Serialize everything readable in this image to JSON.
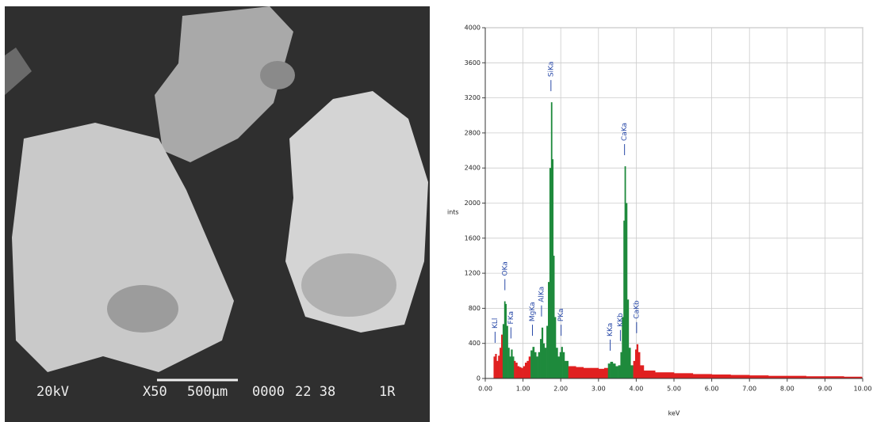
{
  "micrograph": {
    "voltage": "20kV",
    "magnification": "X50",
    "scale": "500µm",
    "code": "0000",
    "number": "22 38",
    "label": "1R"
  },
  "chart_data": {
    "type": "spectrum",
    "y_label": "ints",
    "x_label": "keV",
    "xlim": [
      0,
      10
    ],
    "ylim": [
      0,
      4000
    ],
    "xticks": [
      {
        "value": 0,
        "label": "0.00"
      },
      {
        "value": 1,
        "label": "1.00"
      },
      {
        "value": 2,
        "label": "2.00"
      },
      {
        "value": 3,
        "label": "3.00"
      },
      {
        "value": 4,
        "label": "4.00"
      },
      {
        "value": 5,
        "label": "5.00"
      },
      {
        "value": 6,
        "label": "6.00"
      },
      {
        "value": 7,
        "label": "7.00"
      },
      {
        "value": 8,
        "label": "8.00"
      },
      {
        "value": 9,
        "label": "9.00"
      },
      {
        "value": 10,
        "label": "10.00"
      }
    ],
    "yticks": [
      0,
      400,
      800,
      1200,
      1600,
      2000,
      2400,
      2800,
      3200,
      3600,
      4000
    ],
    "grid": true,
    "color": "#e02020",
    "highlight_color": "#1e8a3c",
    "highlight_ranges": [
      [
        0.44,
        0.75
      ],
      [
        1.18,
        2.15
      ],
      [
        3.2,
        3.86
      ]
    ],
    "x": [
      0.2,
      0.22,
      0.26,
      0.3,
      0.34,
      0.38,
      0.42,
      0.46,
      0.5,
      0.53,
      0.56,
      0.6,
      0.64,
      0.68,
      0.72,
      0.76,
      0.8,
      0.85,
      0.9,
      0.95,
      1.0,
      1.05,
      1.1,
      1.15,
      1.2,
      1.25,
      1.3,
      1.35,
      1.4,
      1.45,
      1.49,
      1.53,
      1.57,
      1.62,
      1.66,
      1.7,
      1.74,
      1.77,
      1.8,
      1.83,
      1.87,
      1.92,
      1.97,
      2.01,
      2.05,
      2.1,
      2.2,
      2.4,
      2.6,
      2.8,
      3.0,
      3.15,
      3.25,
      3.31,
      3.38,
      3.45,
      3.52,
      3.58,
      3.62,
      3.66,
      3.69,
      3.72,
      3.76,
      3.8,
      3.85,
      3.92,
      3.97,
      4.01,
      4.05,
      4.1,
      4.2,
      4.5,
      5.0,
      5.5,
      6.0,
      6.5,
      7.0,
      7.5,
      8.0,
      8.5,
      9.0,
      9.5,
      9.95
    ],
    "values": [
      0,
      250,
      280,
      200,
      260,
      350,
      500,
      620,
      880,
      850,
      600,
      350,
      250,
      330,
      250,
      200,
      180,
      140,
      130,
      120,
      140,
      180,
      200,
      250,
      320,
      360,
      300,
      250,
      300,
      450,
      580,
      400,
      350,
      600,
      1100,
      2400,
      3150,
      2500,
      1400,
      700,
      350,
      250,
      300,
      360,
      300,
      200,
      140,
      130,
      120,
      120,
      110,
      120,
      170,
      190,
      170,
      140,
      150,
      300,
      700,
      1800,
      2420,
      2000,
      900,
      350,
      150,
      200,
      330,
      390,
      300,
      150,
      90,
      70,
      60,
      50,
      45,
      40,
      35,
      30,
      30,
      25,
      25,
      20,
      20
    ],
    "peaks": [
      {
        "label": "KLl",
        "energy": 0.26
      },
      {
        "label": "OKa",
        "energy": 0.52
      },
      {
        "label": "FKa",
        "energy": 0.68
      },
      {
        "label": "MgKa",
        "energy": 1.25
      },
      {
        "label": "AlKa",
        "energy": 1.49
      },
      {
        "label": "SiKa",
        "energy": 1.74
      },
      {
        "label": "PKa",
        "energy": 2.01
      },
      {
        "label": "KKa",
        "energy": 3.31
      },
      {
        "label": "KKb",
        "energy": 3.58
      },
      {
        "label": "CaKa",
        "energy": 3.69
      },
      {
        "label": "CaKb",
        "energy": 4.01
      }
    ]
  }
}
